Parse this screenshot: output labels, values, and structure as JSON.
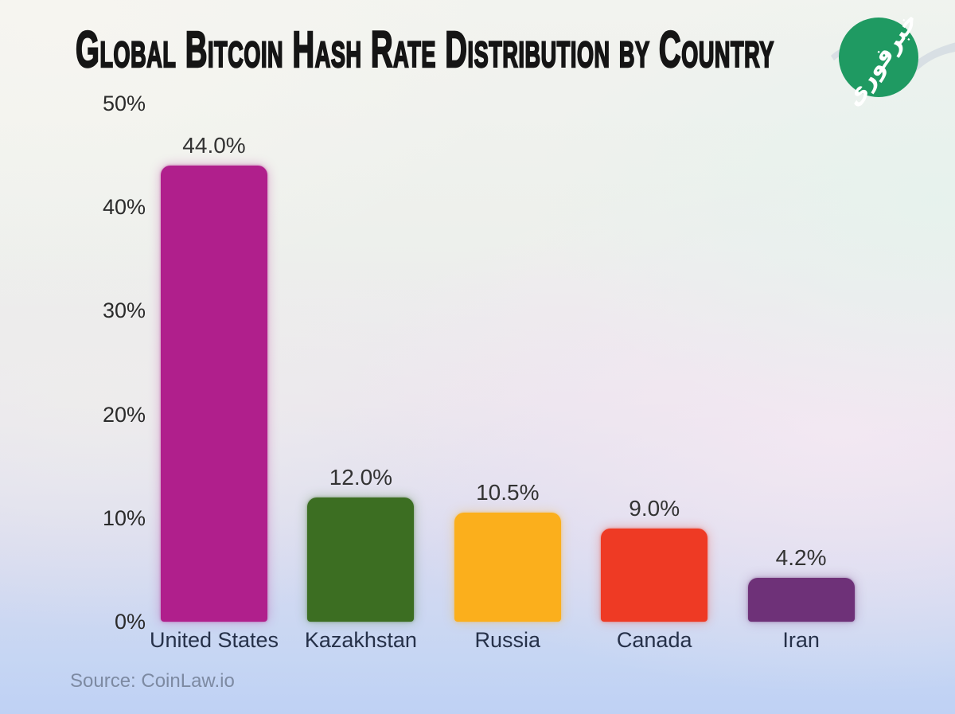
{
  "page": {
    "source_note": "Source: CoinLaw.io"
  },
  "watermark": {
    "name": "khabarfouri-logo",
    "text": "خبرفوری",
    "circle_color": "#1f9a62",
    "text_color": "#ffffff",
    "swoosh_color": "#d7dde3"
  },
  "chart_data": {
    "type": "bar",
    "title": "Global Bitcoin Hash Rate Distribution by Country",
    "categories": [
      "United States",
      "Kazakhstan",
      "Russia",
      "Canada",
      "Iran"
    ],
    "values": [
      44.0,
      12.0,
      10.5,
      9.0,
      4.2
    ],
    "value_labels": [
      "44.0%",
      "12.0%",
      "10.5%",
      "9.0%",
      "4.2%"
    ],
    "bar_colors": [
      "#b01f8c",
      "#3c6e22",
      "#fbaf1c",
      "#ee3a24",
      "#6e3178"
    ],
    "xlabel": "",
    "ylabel": "",
    "ylim": [
      0,
      50
    ],
    "y_ticks": [
      50,
      40,
      30,
      20,
      10,
      0
    ],
    "y_tick_labels": [
      "50%",
      "40%",
      "30%",
      "20%",
      "10%",
      "0%"
    ],
    "grid": false,
    "legend": null,
    "source": "Source: CoinLaw.io"
  }
}
